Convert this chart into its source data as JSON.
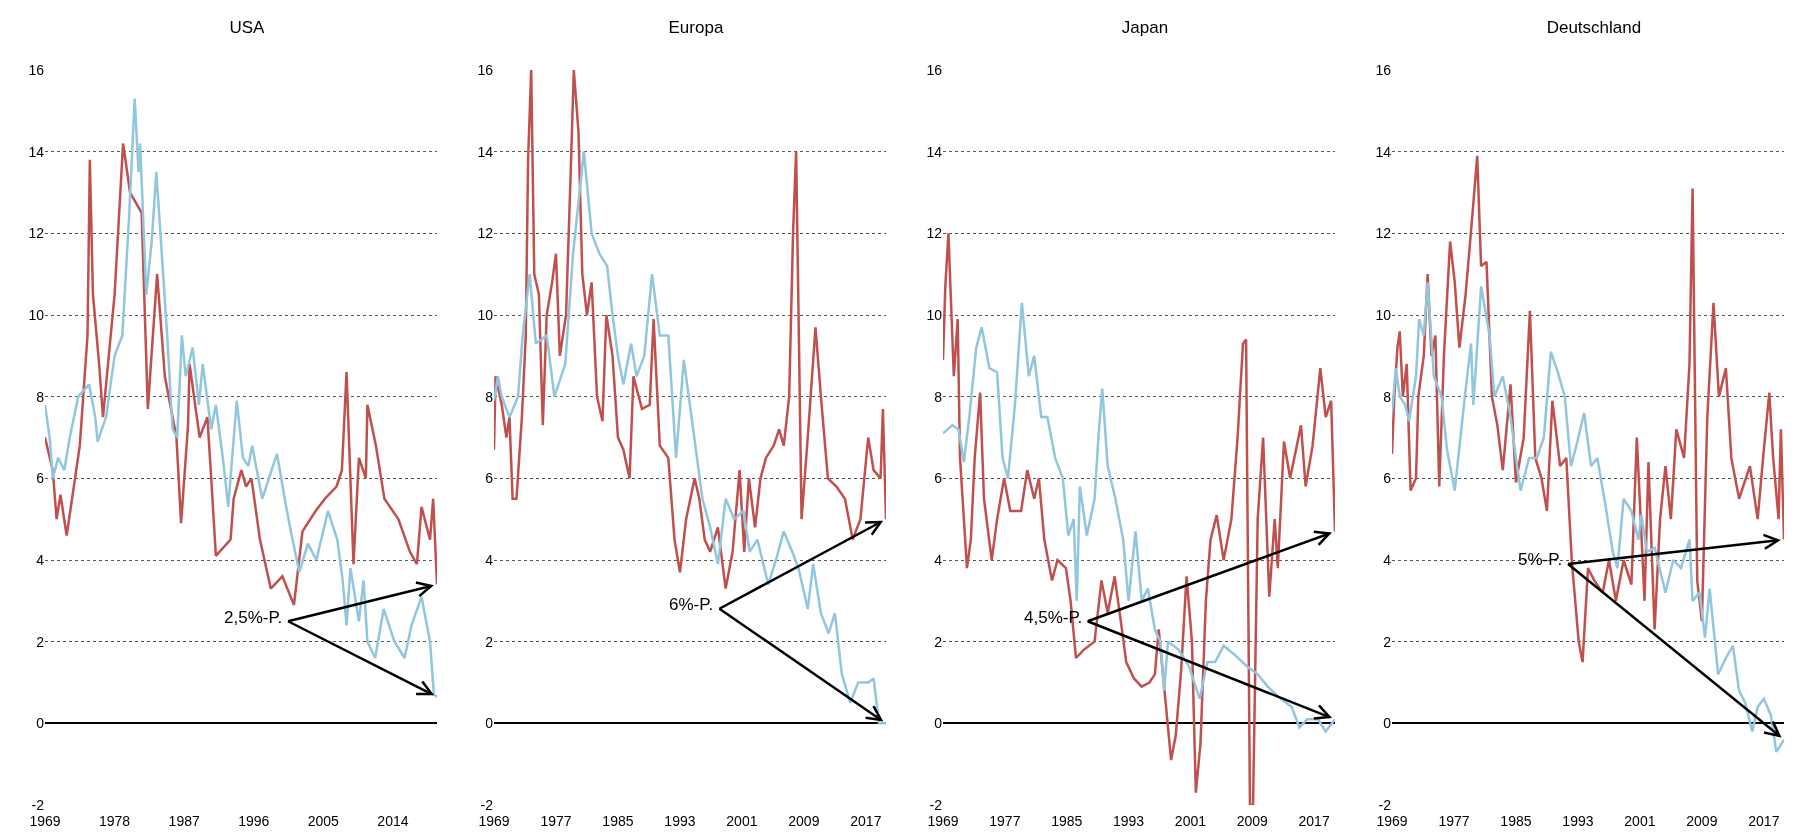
{
  "chart_data": [
    {
      "type": "line",
      "title": "USA",
      "xlim": [
        1969,
        2019.7
      ],
      "xticks": [
        1969,
        1978,
        1987,
        1996,
        2005,
        2014
      ],
      "ylim": [
        -2,
        16
      ],
      "yticks": [
        -2,
        0,
        2,
        4,
        6,
        8,
        10,
        12,
        14,
        16
      ],
      "grid": "y",
      "annotations": [
        "2,5%-P."
      ],
      "series": [
        {
          "color": "#c0504d",
          "x": [
            1969,
            1970,
            1970.5,
            1971,
            1971.8,
            1972.5,
            1973.5,
            1974.5,
            1974.8,
            1975.2,
            1976,
            1976.5,
            1977,
            1978,
            1979.1,
            1980,
            1981.5,
            1982.3,
            1983.5,
            1984.5,
            1986,
            1986.6,
            1987.5,
            1987.7,
            1989,
            1990,
            1990.5,
            1991.1,
            1993,
            1993.4,
            1994.4,
            1995,
            1995.7,
            1996.8,
            1998.2,
            1999.7,
            2001.2,
            2002.3,
            2004,
            2005.2,
            2006.7,
            2007.4,
            2008,
            2008.9,
            2009.6,
            2010.5,
            2010.7,
            2011.8,
            2012.9,
            2014.7,
            2016.2,
            2017.1,
            2017.7,
            2018.8,
            2019.2,
            2019.7
          ],
          "values": [
            7.0,
            6.2,
            5.0,
            5.6,
            4.6,
            5.5,
            6.8,
            9.5,
            13.8,
            10.5,
            8.8,
            7.5,
            8.5,
            10.5,
            14.2,
            13.0,
            12.5,
            7.7,
            11.0,
            8.5,
            7.0,
            4.9,
            7.3,
            8.8,
            7.0,
            7.5,
            6.0,
            4.1,
            4.5,
            5.5,
            6.2,
            5.8,
            6.0,
            4.5,
            3.3,
            3.6,
            2.9,
            4.7,
            5.2,
            5.5,
            5.8,
            6.2,
            8.6,
            3.9,
            6.5,
            6.0,
            7.8,
            6.8,
            5.5,
            5.0,
            4.2,
            3.9,
            5.3,
            4.5,
            5.5,
            3.4
          ]
        },
        {
          "color": "#92c5de",
          "x": [
            1969,
            1969.6,
            1970,
            1970.7,
            1971.5,
            1972.2,
            1973.3,
            1974.7,
            1975.5,
            1975.8,
            1976.9,
            1978,
            1979,
            1979.9,
            1980.6,
            1981.1,
            1981.3,
            1982.1,
            1982.8,
            1983.4,
            1984,
            1984.8,
            1985.5,
            1986.1,
            1986.7,
            1987.2,
            1988.1,
            1988.9,
            1989.4,
            1990.5,
            1991.1,
            1992,
            1992.7,
            1993.8,
            1994.6,
            1995.3,
            1995.8,
            1997.1,
            1999,
            2000.1,
            2000.8,
            2001.9,
            2003,
            2004.1,
            2005.6,
            2006.8,
            2007.5,
            2008,
            2008.5,
            2009.6,
            2010.2,
            2010.7,
            2011.7,
            2012.8,
            2014.2,
            2015.5,
            2016.4,
            2017.7,
            2018.8,
            2019.3,
            2019.7
          ],
          "values": [
            7.8,
            7.0,
            6.0,
            6.5,
            6.2,
            7.0,
            8.0,
            8.3,
            7.5,
            6.9,
            7.5,
            9.0,
            9.5,
            12.5,
            15.3,
            13.5,
            14.2,
            10.5,
            11.8,
            13.5,
            11.8,
            9.5,
            7.2,
            7.0,
            9.5,
            8.5,
            9.2,
            7.8,
            8.8,
            7.2,
            7.8,
            6.5,
            5.3,
            7.9,
            6.5,
            6.3,
            6.8,
            5.5,
            6.6,
            5.4,
            4.7,
            3.7,
            4.4,
            4.0,
            5.2,
            4.5,
            3.5,
            2.4,
            3.8,
            2.5,
            3.5,
            2.0,
            1.6,
            2.8,
            2.0,
            1.6,
            2.4,
            3.1,
            2.0,
            0.7,
            0.65
          ]
        }
      ]
    },
    {
      "type": "line",
      "title": "Europa",
      "xlim": [
        1969,
        2019.6
      ],
      "xticks": [
        1969,
        1977,
        1985,
        1993,
        2001,
        2009,
        2017
      ],
      "ylim": [
        -2,
        16
      ],
      "yticks": [
        -2,
        0,
        2,
        4,
        6,
        8,
        10,
        12,
        14,
        16
      ],
      "grid": "y",
      "annotations": [
        "6%-P."
      ],
      "series": [
        {
          "color": "#c0504d",
          "x": [
            1969,
            1969.2,
            1970,
            1970.6,
            1971,
            1971.4,
            1971.9,
            1972.6,
            1973.1,
            1973.4,
            1973.8,
            1974.2,
            1974.8,
            1975.3,
            1975.8,
            1976.5,
            1977,
            1977.5,
            1978.3,
            1978.9,
            1979.3,
            1979.9,
            1980.4,
            1981,
            1981.6,
            1982.3,
            1983,
            1983.5,
            1984.3,
            1985,
            1985.7,
            1986.5,
            1987,
            1988.1,
            1989.1,
            1989.6,
            1990.4,
            1991.5,
            1992.3,
            1993,
            1993.8,
            1994.9,
            1995.5,
            1996.2,
            1996.9,
            1997.9,
            1998.9,
            1999.8,
            2000.7,
            2001.3,
            2001.9,
            2002.7,
            2003.4,
            2004.1,
            2005.1,
            2005.8,
            2006.4,
            2007.1,
            2007.6,
            2008,
            2008.7,
            2009.5,
            2010.5,
            2011.2,
            2012.1,
            2013.2,
            2014.3,
            2015.3,
            2016.3,
            2017.3,
            2018,
            2018.9,
            2019.2,
            2019.6
          ],
          "values": [
            6.7,
            8.5,
            7.8,
            7.0,
            7.5,
            5.5,
            5.5,
            7.5,
            9.5,
            13.8,
            16.0,
            11.0,
            10.5,
            7.3,
            10.0,
            10.8,
            11.5,
            9.0,
            10.0,
            13.5,
            16.0,
            14.5,
            11.0,
            10.0,
            10.8,
            8.0,
            7.4,
            10.0,
            9.0,
            7.0,
            6.7,
            6.0,
            8.5,
            7.7,
            7.8,
            9.9,
            6.8,
            6.5,
            4.5,
            3.7,
            5.0,
            6.0,
            5.5,
            4.5,
            4.2,
            4.8,
            3.3,
            4.2,
            6.2,
            4.2,
            6.0,
            4.8,
            6.0,
            6.5,
            6.8,
            7.2,
            6.8,
            8.0,
            12.0,
            14.0,
            5.0,
            7.0,
            9.7,
            8.0,
            6.0,
            5.8,
            5.5,
            4.5,
            5.0,
            7.0,
            6.2,
            6.0,
            7.7,
            5.0
          ]
        },
        {
          "color": "#92c5de",
          "x": [
            1969,
            1969.5,
            1970,
            1971,
            1972.1,
            1972.7,
            1973.6,
            1974.4,
            1975.8,
            1976.8,
            1978.2,
            1979.2,
            1980.6,
            1981.6,
            1982.6,
            1983.6,
            1984.3,
            1985,
            1985.7,
            1986.7,
            1987.4,
            1988.4,
            1989.4,
            1990.4,
            1991.5,
            1992.5,
            1993.5,
            1994.5,
            1995.9,
            1996.9,
            1997.9,
            1998.9,
            2000,
            2001.2,
            2002,
            2003,
            2004.4,
            2005.4,
            2006.4,
            2007.5,
            2008.3,
            2009.5,
            2010.2,
            2011.2,
            2012.2,
            2013,
            2013.9,
            2015,
            2016,
            2017.3,
            2018,
            2018.7,
            2019.6
          ],
          "values": [
            7.9,
            8.5,
            8.0,
            7.5,
            8.0,
            9.5,
            11.0,
            9.3,
            9.5,
            8.0,
            8.8,
            11.5,
            14.0,
            12.0,
            11.5,
            11.2,
            10.0,
            9.0,
            8.3,
            9.3,
            8.5,
            9.0,
            11.0,
            9.5,
            9.5,
            6.5,
            8.9,
            7.5,
            5.5,
            4.8,
            3.9,
            5.5,
            5.0,
            5.2,
            4.2,
            4.5,
            3.4,
            4.0,
            4.7,
            4.2,
            3.8,
            2.8,
            3.9,
            2.7,
            2.2,
            2.7,
            1.2,
            0.5,
            1.0,
            1.0,
            1.1,
            0.0,
            0.0
          ]
        }
      ]
    },
    {
      "type": "line",
      "title": "Japan",
      "xlim": [
        1969,
        2019.7
      ],
      "xticks": [
        1969,
        1977,
        1985,
        1993,
        2001,
        2009,
        2017
      ],
      "ylim": [
        -2,
        16
      ],
      "yticks": [
        -2,
        0,
        2,
        4,
        6,
        8,
        10,
        12,
        14,
        16
      ],
      "grid": "y",
      "annotations": [
        "4,5%-P."
      ],
      "series": [
        {
          "color": "#c0504d",
          "x": [
            1969,
            1969.3,
            1969.7,
            1970.1,
            1970.4,
            1970.9,
            1971.2,
            1971.7,
            1972.1,
            1972.6,
            1973.1,
            1973.8,
            1974.3,
            1975.3,
            1976,
            1976.9,
            1977.7,
            1979.1,
            1979.9,
            1980.8,
            1981.4,
            1982.1,
            1983.1,
            1983.8,
            1984.9,
            1985.5,
            1986.2,
            1987.2,
            1988.6,
            1989.5,
            1990.3,
            1991.2,
            1992,
            1992.7,
            1993.7,
            1994.7,
            1995.7,
            1996.4,
            1996.9,
            1997.8,
            1998.5,
            1999.1,
            1999.8,
            2000.5,
            2001.2,
            2001.7,
            2002.3,
            2003,
            2003.6,
            2004.4,
            2005.3,
            2006.3,
            2007.1,
            2007.8,
            2008.2,
            2008.7,
            2009.1,
            2009.7,
            2010.4,
            2011.2,
            2011.9,
            2012.3,
            2013.1,
            2013.9,
            2015.3,
            2015.9,
            2016.8,
            2017.8,
            2018.5,
            2019.2,
            2019.7
          ],
          "values": [
            8.9,
            10.7,
            12.0,
            10.0,
            8.5,
            9.9,
            6.5,
            5.0,
            3.8,
            4.5,
            6.5,
            8.1,
            5.5,
            4.0,
            5.0,
            6.0,
            5.2,
            5.2,
            6.2,
            5.5,
            6.0,
            4.5,
            3.5,
            4.0,
            3.8,
            3.0,
            1.6,
            1.8,
            2.0,
            3.5,
            2.7,
            3.6,
            2.5,
            1.5,
            1.1,
            0.9,
            1.0,
            1.2,
            2.3,
            0.5,
            -0.9,
            -0.3,
            1.3,
            3.6,
            2.0,
            -1.7,
            -0.5,
            3.0,
            4.5,
            5.1,
            4.0,
            5.0,
            7.0,
            9.3,
            9.4,
            -2.0,
            -2.0,
            5.0,
            7.0,
            3.1,
            5.0,
            3.8,
            6.9,
            6.0,
            7.3,
            5.8,
            6.8,
            8.7,
            7.5,
            7.9,
            4.7
          ]
        },
        {
          "color": "#92c5de",
          "x": [
            1969,
            1970.2,
            1971,
            1971.7,
            1972.4,
            1973.3,
            1974,
            1975,
            1976,
            1976.7,
            1977.4,
            1978.3,
            1979.2,
            1980.1,
            1980.8,
            1981.7,
            1982.5,
            1983.5,
            1984.5,
            1985.2,
            1985.9,
            1986.3,
            1986.7,
            1987.6,
            1988.6,
            1989.1,
            1989.6,
            1990.3,
            1991.3,
            1992.3,
            1993,
            1993.9,
            1994.7,
            1995.5,
            1996.4,
            1997.1,
            1997.6,
            1998.1,
            1999.5,
            2000.8,
            2002.2,
            2003.2,
            2004.2,
            2005.3,
            2006.6,
            2008.3,
            2009.7,
            2011,
            2012.7,
            2014.1,
            2015.1,
            2016.1,
            2017.5,
            2018.5,
            2019.7
          ],
          "values": [
            7.1,
            7.3,
            7.2,
            6.4,
            7.5,
            9.2,
            9.7,
            8.7,
            8.6,
            6.5,
            6.0,
            7.8,
            10.3,
            8.5,
            9.0,
            7.5,
            7.5,
            6.5,
            6.0,
            4.6,
            5.0,
            3.0,
            5.8,
            4.6,
            5.5,
            7.0,
            8.2,
            6.3,
            5.5,
            4.5,
            3.0,
            4.7,
            3.0,
            3.3,
            2.3,
            2.0,
            0.8,
            2.0,
            1.8,
            1.4,
            0.6,
            1.5,
            1.5,
            1.9,
            1.7,
            1.4,
            1.2,
            0.9,
            0.6,
            0.4,
            -0.1,
            0.1,
            0.1,
            -0.2,
            0.1
          ]
        }
      ]
    },
    {
      "type": "line",
      "title": "Deutschland",
      "xlim": [
        1969,
        2019.6
      ],
      "xticks": [
        1969,
        1977,
        1985,
        1993,
        2001,
        2009,
        2017
      ],
      "ylim": [
        -2,
        16
      ],
      "yticks": [
        -2,
        0,
        2,
        4,
        6,
        8,
        10,
        12,
        14,
        16
      ],
      "grid": "y",
      "annotations": [
        "5%-P."
      ],
      "series": [
        {
          "color": "#c0504d",
          "x": [
            1969,
            1969.3,
            1969.7,
            1970,
            1970.4,
            1970.9,
            1971.4,
            1972.1,
            1972.4,
            1973.1,
            1973.6,
            1974.1,
            1974.6,
            1975.1,
            1975.7,
            1976.5,
            1977.1,
            1977.7,
            1978.5,
            1979.4,
            1980,
            1980.5,
            1981.2,
            1981.9,
            1982.6,
            1983.3,
            1984.3,
            1985,
            1986,
            1986.8,
            1987.5,
            1988.3,
            1989,
            1989.7,
            1990.7,
            1991.5,
            1992.2,
            1993.1,
            1993.6,
            1994.3,
            1995.1,
            1996.2,
            1997,
            1997.9,
            1998.9,
            1999.9,
            2000.6,
            2001.6,
            2002.1,
            2002.9,
            2003.6,
            2004.3,
            2005,
            2005.7,
            2006.7,
            2007.4,
            2007.8,
            2008.4,
            2009,
            2009.7,
            2010.5,
            2011.2,
            2012.1,
            2012.8,
            2013.8,
            2015.2,
            2016.2,
            2016.9,
            2017.7,
            2018.2,
            2018.9,
            2019.2,
            2019.6
          ],
          "values": [
            6.6,
            8.0,
            9.2,
            9.6,
            8.0,
            8.8,
            5.7,
            6.0,
            8.0,
            9.0,
            11.0,
            9.0,
            9.5,
            5.8,
            9.0,
            11.8,
            10.8,
            9.2,
            10.5,
            12.5,
            13.9,
            11.2,
            11.3,
            8.0,
            7.3,
            6.2,
            8.3,
            5.9,
            7.0,
            10.1,
            6.5,
            6.0,
            5.2,
            7.9,
            6.3,
            6.5,
            4.0,
            2.0,
            1.5,
            3.8,
            3.5,
            3.2,
            4.0,
            3.0,
            4.0,
            3.4,
            7.0,
            3.0,
            6.4,
            2.3,
            5.0,
            6.3,
            5.0,
            7.2,
            6.5,
            8.8,
            13.1,
            3.5,
            2.5,
            7.5,
            10.3,
            8.0,
            8.7,
            6.5,
            5.5,
            6.3,
            5.0,
            6.5,
            8.1,
            6.5,
            5.0,
            7.2,
            4.5
          ]
        },
        {
          "color": "#92c5de",
          "x": [
            1969,
            1969.5,
            1970,
            1970.7,
            1971.2,
            1972.1,
            1972.5,
            1973.1,
            1973.6,
            1974.4,
            1975.4,
            1976.1,
            1977.1,
            1978.4,
            1979.2,
            1979.5,
            1980.5,
            1981.6,
            1982.2,
            1983.3,
            1984.3,
            1985,
            1985.6,
            1986.7,
            1987.7,
            1988.6,
            1989.5,
            1990.4,
            1991.3,
            1992.1,
            1992.8,
            1993.8,
            1994.7,
            1995.5,
            1996.5,
            1997.5,
            1998.1,
            1998.9,
            1999.9,
            2000.8,
            2001.2,
            2001.9,
            2002.9,
            2004.3,
            2005.3,
            2006.3,
            2007.4,
            2007.8,
            2008.7,
            2009.4,
            2010,
            2011.1,
            2012.1,
            2013,
            2013.8,
            2014.6,
            2015.5,
            2016.2,
            2017,
            2017.9,
            2018.6,
            2019.6
          ],
          "values": [
            7.6,
            8.7,
            8.0,
            7.8,
            7.4,
            8.5,
            9.9,
            9.5,
            10.8,
            8.5,
            8.0,
            6.7,
            5.7,
            8.0,
            9.3,
            7.8,
            10.7,
            9.5,
            8.0,
            8.5,
            7.5,
            6.5,
            5.7,
            6.5,
            6.5,
            7.0,
            9.1,
            8.6,
            8.0,
            6.3,
            6.8,
            7.6,
            6.3,
            6.5,
            5.4,
            4.2,
            3.8,
            5.5,
            5.2,
            4.5,
            5.1,
            4.2,
            4.3,
            3.2,
            4.0,
            3.8,
            4.5,
            3.0,
            3.2,
            2.1,
            3.3,
            1.2,
            1.6,
            1.9,
            0.8,
            0.5,
            -0.2,
            0.4,
            0.6,
            0.2,
            -0.7,
            -0.4
          ]
        }
      ]
    }
  ]
}
